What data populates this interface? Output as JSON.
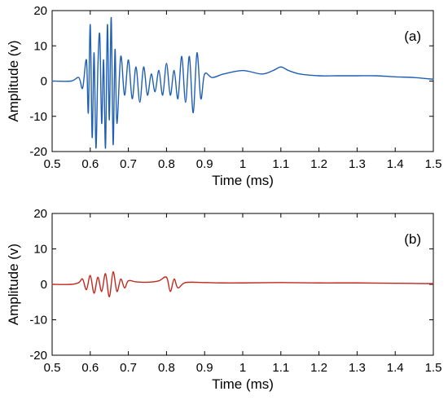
{
  "chart_data": [
    {
      "type": "line",
      "panel_label": "(a)",
      "xlabel": "Time (ms)",
      "ylabel": "Amplitude (v)",
      "xlim": [
        0.5,
        1.5
      ],
      "ylim": [
        -20,
        20
      ],
      "xticks": [
        0.5,
        0.6,
        0.7,
        0.8,
        0.9,
        1,
        1.1,
        1.2,
        1.3,
        1.4,
        1.5
      ],
      "xtick_labels": [
        "0.5",
        "0.6",
        "0.7",
        "0.8",
        "0.9",
        "1",
        "1.1",
        "1.2",
        "1.3",
        "1.4",
        "1.5"
      ],
      "yticks": [
        20,
        10,
        0,
        -10,
        -20
      ],
      "ytick_labels": [
        "20",
        "10",
        "0",
        "-10",
        "-20"
      ],
      "grid": false,
      "legend": "none",
      "line_color": "#1f5fb4",
      "series": [
        {
          "x": [
            0.5,
            0.55,
            0.57,
            0.58,
            0.59,
            0.595,
            0.6,
            0.605,
            0.61,
            0.615,
            0.62,
            0.625,
            0.63,
            0.635,
            0.64,
            0.645,
            0.65,
            0.655,
            0.66,
            0.665,
            0.67,
            0.68,
            0.69,
            0.7,
            0.71,
            0.72,
            0.73,
            0.74,
            0.75,
            0.76,
            0.77,
            0.78,
            0.79,
            0.8,
            0.81,
            0.82,
            0.83,
            0.84,
            0.85,
            0.86,
            0.87,
            0.88,
            0.89,
            0.9,
            0.92,
            0.95,
            1.0,
            1.05,
            1.08,
            1.1,
            1.12,
            1.15,
            1.2,
            1.25,
            1.3,
            1.35,
            1.4,
            1.45,
            1.5
          ],
          "y": [
            0,
            0,
            1,
            -2,
            6,
            -9,
            16,
            -16,
            8,
            -19,
            4,
            13,
            -12,
            6,
            -19,
            16,
            -11,
            18,
            -18,
            9,
            -12,
            7,
            -4,
            6,
            -5,
            4,
            -6,
            4,
            -4,
            2,
            -3,
            3,
            -4,
            5,
            -4,
            3,
            -5,
            7,
            -6,
            7,
            -9,
            8,
            -5,
            2,
            1,
            2,
            3,
            2,
            3,
            4,
            3,
            2,
            1.5,
            1.5,
            1.5,
            1.5,
            1.2,
            1,
            0.5
          ]
        }
      ]
    },
    {
      "type": "line",
      "panel_label": "(b)",
      "xlabel": "Time (ms)",
      "ylabel": "Amplitude (v)",
      "xlim": [
        0.5,
        1.5
      ],
      "ylim": [
        -20,
        20
      ],
      "xticks": [
        0.5,
        0.6,
        0.7,
        0.8,
        0.9,
        1,
        1.1,
        1.2,
        1.3,
        1.4,
        1.5
      ],
      "xtick_labels": [
        "0.5",
        "0.6",
        "0.7",
        "0.8",
        "0.9",
        "1",
        "1.1",
        "1.2",
        "1.3",
        "1.4",
        "1.5"
      ],
      "yticks": [
        20,
        10,
        0,
        -10,
        -20
      ],
      "ytick_labels": [
        "20",
        "10",
        "0",
        "-10",
        "-20"
      ],
      "grid": false,
      "legend": "none",
      "line_color": "#c0281e",
      "series": [
        {
          "x": [
            0.5,
            0.55,
            0.57,
            0.58,
            0.59,
            0.6,
            0.61,
            0.62,
            0.63,
            0.64,
            0.65,
            0.66,
            0.67,
            0.68,
            0.69,
            0.7,
            0.72,
            0.75,
            0.78,
            0.8,
            0.81,
            0.82,
            0.83,
            0.85,
            0.9,
            0.95,
            1.0,
            1.1,
            1.2,
            1.3,
            1.4,
            1.5
          ],
          "y": [
            0,
            0,
            0.5,
            1.5,
            -1.5,
            2.5,
            -2.5,
            2,
            -2,
            3,
            -3.5,
            3.5,
            -2,
            1.5,
            -1,
            1,
            0.7,
            0.6,
            1,
            2,
            -2,
            1.5,
            -1,
            0.5,
            0.5,
            0.4,
            0.4,
            0.5,
            0.4,
            0.4,
            0.3,
            0.2
          ]
        }
      ]
    }
  ]
}
